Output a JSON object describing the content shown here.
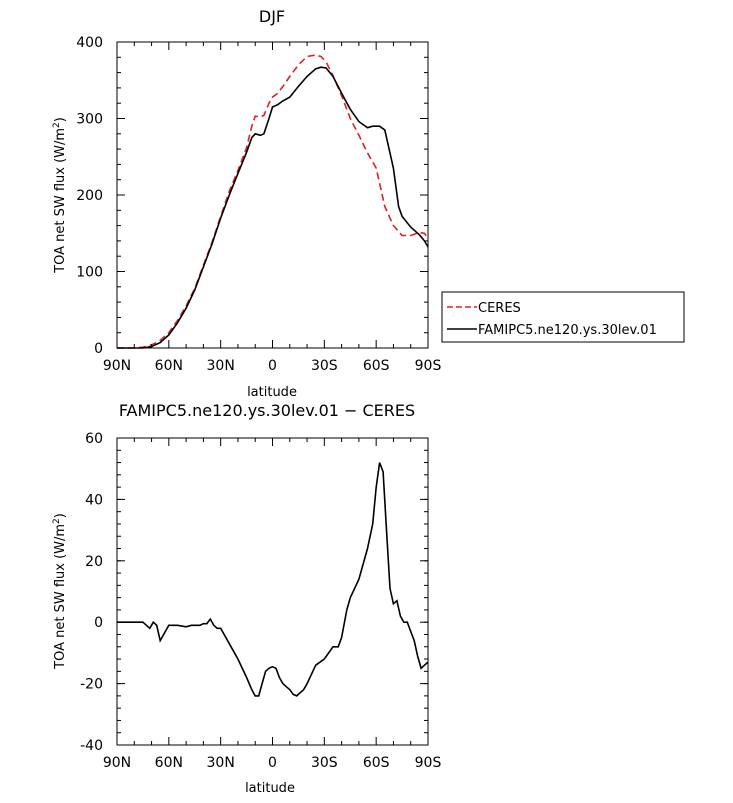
{
  "chart_data": [
    {
      "type": "line",
      "title": "DJF",
      "xlabel": "latitude",
      "ylabel": "TOA net SW flux (W/m²)",
      "xlim": [
        90,
        -90
      ],
      "ylim": [
        0,
        400
      ],
      "x_ticks": [
        {
          "value": 90,
          "label": "90N"
        },
        {
          "value": 60,
          "label": "60N"
        },
        {
          "value": 30,
          "label": "30N"
        },
        {
          "value": 0,
          "label": "0"
        },
        {
          "value": -30,
          "label": "30S"
        },
        {
          "value": -60,
          "label": "60S"
        },
        {
          "value": -90,
          "label": "90S"
        }
      ],
      "y_ticks": [
        0,
        100,
        200,
        300,
        400
      ],
      "grid": false,
      "legend_position": "outside right",
      "series": [
        {
          "name": "CERES",
          "color": "#e02020",
          "dash": "dashed",
          "x": [
            90,
            85,
            80,
            75,
            70,
            65,
            60,
            55,
            50,
            45,
            40,
            35,
            30,
            25,
            20,
            15,
            12,
            10,
            7,
            5,
            2,
            0,
            -3,
            -6,
            -10,
            -15,
            -20,
            -25,
            -28,
            -31,
            -35,
            -40,
            -45,
            -50,
            -55,
            -60,
            -65,
            -70,
            -75,
            -80,
            -85,
            -88,
            -90
          ],
          "y": [
            0,
            0,
            0,
            1,
            4,
            10,
            20,
            36,
            55,
            78,
            108,
            138,
            172,
            205,
            232,
            262,
            290,
            303,
            302,
            304,
            320,
            328,
            333,
            342,
            355,
            370,
            381,
            383,
            381,
            374,
            356,
            330,
            300,
            278,
            255,
            235,
            185,
            160,
            147,
            147,
            151,
            150,
            143
          ]
        },
        {
          "name": "FAMIPC5.ne120.ys.30lev.01",
          "color": "#000000",
          "dash": "solid",
          "x": [
            90,
            85,
            80,
            75,
            70,
            65,
            60,
            55,
            50,
            45,
            40,
            35,
            30,
            25,
            20,
            15,
            12,
            10,
            7,
            5,
            2,
            0,
            -3,
            -6,
            -10,
            -15,
            -20,
            -25,
            -28,
            -31,
            -35,
            -40,
            -45,
            -50,
            -55,
            -58,
            -62,
            -65,
            -70,
            -73,
            -75,
            -80,
            -85,
            -88,
            -90
          ],
          "y": [
            0,
            0,
            0,
            0,
            2,
            7,
            17,
            33,
            52,
            76,
            106,
            136,
            170,
            200,
            228,
            256,
            275,
            280,
            278,
            280,
            300,
            315,
            318,
            323,
            328,
            342,
            355,
            365,
            367,
            366,
            355,
            333,
            312,
            296,
            288,
            290,
            290,
            285,
            235,
            185,
            172,
            158,
            148,
            140,
            132
          ]
        }
      ]
    },
    {
      "type": "line",
      "title": "FAMIPC5.ne120.ys.30lev.01 − CERES",
      "xlabel": "latitude",
      "ylabel": "TOA net SW flux (W/m²)",
      "xlim": [
        90,
        -90
      ],
      "ylim": [
        -40,
        60
      ],
      "x_ticks": [
        {
          "value": 90,
          "label": "90N"
        },
        {
          "value": 60,
          "label": "60N"
        },
        {
          "value": 30,
          "label": "30N"
        },
        {
          "value": 0,
          "label": "0"
        },
        {
          "value": -30,
          "label": "30S"
        },
        {
          "value": -60,
          "label": "60S"
        },
        {
          "value": -90,
          "label": "90S"
        }
      ],
      "y_ticks": [
        -40,
        -20,
        0,
        20,
        40,
        60
      ],
      "grid": false,
      "series": [
        {
          "color": "#000000",
          "dash": "solid",
          "x": [
            90,
            75,
            73,
            71,
            69,
            67,
            65,
            60,
            55,
            50,
            47,
            45,
            42,
            40,
            38,
            36,
            34,
            32,
            30,
            25,
            20,
            15,
            12,
            10,
            8,
            6,
            4,
            2,
            0,
            -2,
            -4,
            -6,
            -8,
            -10,
            -12,
            -14,
            -16,
            -18,
            -20,
            -25,
            -30,
            -35,
            -38,
            -40,
            -43,
            -45,
            -50,
            -55,
            -58,
            -60,
            -62,
            -64,
            -66,
            -68,
            -70,
            -72,
            -74,
            -76,
            -78,
            -80,
            -82,
            -84,
            -86,
            -88,
            -90
          ],
          "y": [
            0,
            0,
            -1,
            -2,
            0,
            -1,
            -6,
            -1,
            -1,
            -1.5,
            -1,
            -1,
            -1,
            -0.5,
            -0.5,
            1,
            -1,
            -2,
            -2,
            -7,
            -12,
            -18,
            -22,
            -24,
            -24,
            -20,
            -16,
            -15,
            -14.5,
            -15,
            -18,
            -20,
            -21,
            -22,
            -23.5,
            -24,
            -23,
            -22,
            -20,
            -14,
            -12,
            -8,
            -8,
            -5,
            4,
            8,
            14,
            24,
            32,
            44,
            52,
            49,
            30,
            11,
            6,
            7,
            2,
            0,
            0,
            -3,
            -6,
            -11,
            -15,
            -14,
            -13
          ]
        }
      ]
    }
  ]
}
